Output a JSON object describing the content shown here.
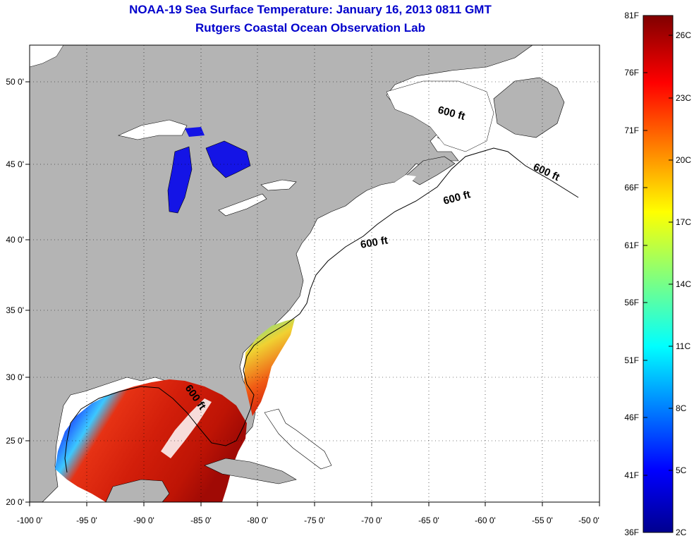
{
  "title": {
    "line1": "NOAA-19 Sea Surface Temperature:  January 16, 2013 0811 GMT",
    "line2": "Rutgers Coastal Ocean Observation Lab"
  },
  "map": {
    "lon_ticks": [
      "-100 0'",
      "-95 0'",
      "-90 0'",
      "-85 0'",
      "-80 0'",
      "-75 0'",
      "-70 0'",
      "-65 0'",
      "-60 0'",
      "-55 0'",
      "-50 0'"
    ],
    "lat_ticks": [
      "50 0'",
      "45 0'",
      "40 0'",
      "35 0'",
      "30 0'",
      "25 0'",
      "20 0'"
    ],
    "contour_labels": [
      "600 ft",
      "600 ft",
      "600 ft",
      "600 ft",
      "600 ft"
    ],
    "colors": {
      "land": "#b4b4b4",
      "ocean": "#ffffff",
      "grid": "#000000",
      "lakes": "#1414e6"
    }
  },
  "colorbar": {
    "fahrenheit": [
      "81F",
      "76F",
      "71F",
      "66F",
      "61F",
      "56F",
      "51F",
      "46F",
      "41F",
      "36F"
    ],
    "celsius": [
      "26C",
      "23C",
      "20C",
      "17C",
      "14C",
      "11C",
      "8C",
      "5C",
      "2C"
    ]
  }
}
